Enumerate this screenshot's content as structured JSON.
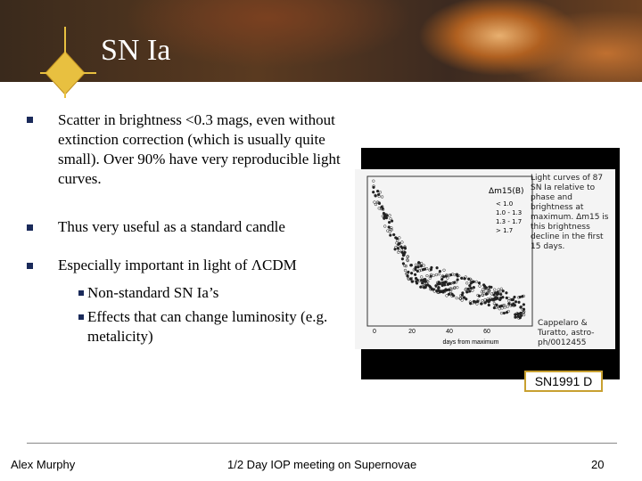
{
  "header": {
    "title": "SN Ia"
  },
  "bullets": [
    {
      "text": "Scatter in brightness <0.3 mags, even without extinction correction (which is usually quite small). Over 90% have very reproducible light curves."
    },
    {
      "text": "Thus very useful as a standard candle"
    },
    {
      "text": "Especially important in light of ΛCDM",
      "sub": [
        "Non-standard SN Ia’s",
        "Effects that can change luminosity (e.g. metalicity)"
      ]
    }
  ],
  "figure": {
    "caption": "Light curves of 87 SN Ia relative to phase and brightness at maximum. Δm15 is this brightness decline in the first 15 days.",
    "legend_title": "Δm15(B)",
    "legend": [
      "< 1.0",
      "1.0 - 1.3",
      "1.3 - 1.7",
      "> 1.7"
    ],
    "x_label": "days from maximum",
    "x_ticks": [
      "0",
      "20",
      "40",
      "60"
    ],
    "credit": "Cappelaro & Turatto, astro-ph/0012455",
    "label": "SN1991 D"
  },
  "footer": {
    "author": "Alex Murphy",
    "event": "1/2 Day IOP meeting on Supernovae",
    "page": "20"
  }
}
